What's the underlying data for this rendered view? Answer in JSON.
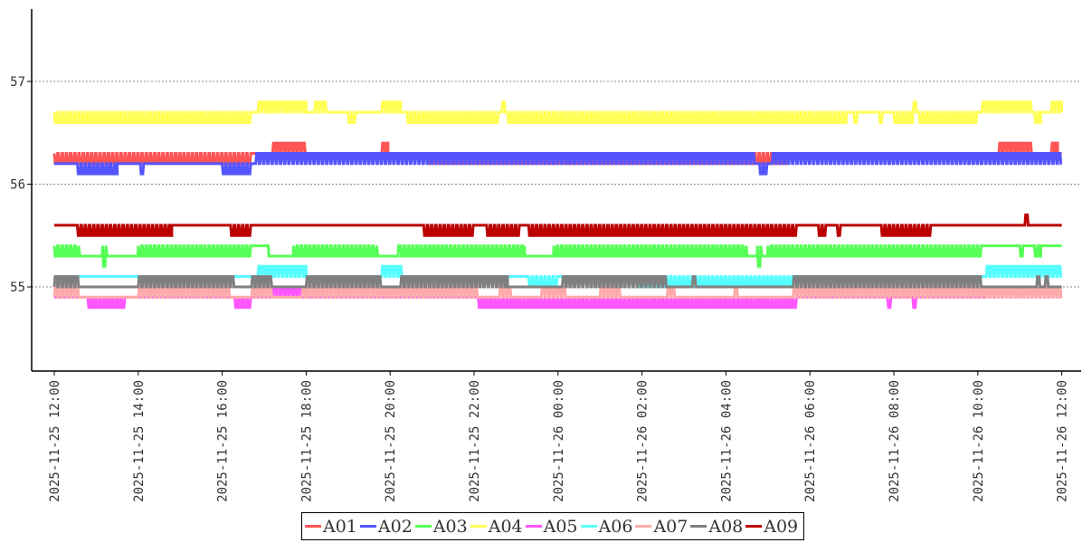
{
  "chart_data": {
    "type": "line",
    "title": "",
    "xlabel": "",
    "ylabel": "",
    "x_unit": "hours since 2025-11-25 12:00",
    "xlim": [
      0,
      24
    ],
    "ylim": [
      54.18,
      57.7
    ],
    "grid": "horizontal dotted",
    "legend_placement": "bottom-center",
    "x_ticks": [
      {
        "h": 0,
        "label": "2025-11-25 12:00"
      },
      {
        "h": 2,
        "label": "2025-11-25 14:00"
      },
      {
        "h": 4,
        "label": "2025-11-25 16:00"
      },
      {
        "h": 6,
        "label": "2025-11-25 18:00"
      },
      {
        "h": 8,
        "label": "2025-11-25 20:00"
      },
      {
        "h": 10,
        "label": "2025-11-25 22:00"
      },
      {
        "h": 12,
        "label": "2025-11-26 00:00"
      },
      {
        "h": 14,
        "label": "2025-11-26 02:00"
      },
      {
        "h": 16,
        "label": "2025-11-26 04:00"
      },
      {
        "h": 18,
        "label": "2025-11-26 06:00"
      },
      {
        "h": 20,
        "label": "2025-11-26 08:00"
      },
      {
        "h": 22,
        "label": "2025-11-26 10:00"
      },
      {
        "h": 24,
        "label": "2025-11-26 12:00"
      }
    ],
    "y_ticks": [
      {
        "v": 55,
        "label": "55"
      },
      {
        "v": 56,
        "label": "56"
      },
      {
        "v": 57,
        "label": "57"
      }
    ],
    "series": [
      {
        "name": "A01",
        "color": "#ff5555",
        "base": 56.3,
        "segments": [
          [
            0,
            4.7,
            56.2
          ],
          [
            5.2,
            6.0,
            56.4
          ],
          [
            7.8,
            7.95,
            56.4
          ],
          [
            8.9,
            17.5,
            56.2
          ],
          [
            22.5,
            23.3,
            56.4
          ],
          [
            23.75,
            23.9,
            56.4
          ]
        ]
      },
      {
        "name": "A02",
        "color": "#5555ff",
        "base": 56.2,
        "segments": [
          [
            0.55,
            1.5,
            56.1
          ],
          [
            2.05,
            2.15,
            56.1
          ],
          [
            4.0,
            4.7,
            56.1
          ],
          [
            4.8,
            16.7,
            56.3
          ],
          [
            16.8,
            17.0,
            56.1
          ],
          [
            17.1,
            24,
            56.3
          ]
        ]
      },
      {
        "name": "A03",
        "color": "#55ff55",
        "base": 55.4,
        "segments": [
          [
            0,
            0.6,
            55.3
          ],
          [
            0.6,
            1.15,
            55.3,
            1
          ],
          [
            1.15,
            1.25,
            55.2
          ],
          [
            1.25,
            2.0,
            55.3,
            1
          ],
          [
            2.0,
            4.7,
            55.3
          ],
          [
            5.1,
            5.7,
            55.3,
            1
          ],
          [
            5.7,
            7.7,
            55.3
          ],
          [
            7.7,
            8.2,
            55.3,
            1
          ],
          [
            8.25,
            11.2,
            55.3
          ],
          [
            11.2,
            11.9,
            55.3,
            1
          ],
          [
            11.9,
            16.5,
            55.3
          ],
          [
            16.5,
            16.75,
            55.3,
            1
          ],
          [
            16.75,
            16.85,
            55.2
          ],
          [
            16.85,
            17.0,
            55.3,
            1
          ],
          [
            17.0,
            22.1,
            55.3
          ],
          [
            23.0,
            23.1,
            55.3
          ],
          [
            23.35,
            23.5,
            55.3
          ]
        ]
      },
      {
        "name": "A04",
        "color": "#ffff55",
        "base": 56.7,
        "segments": [
          [
            0,
            4.7,
            56.6
          ],
          [
            4.85,
            6.0,
            56.8
          ],
          [
            6.2,
            6.5,
            56.8
          ],
          [
            7.0,
            7.2,
            56.6
          ],
          [
            7.8,
            8.25,
            56.8
          ],
          [
            8.4,
            10.6,
            56.6
          ],
          [
            10.66,
            10.74,
            56.8
          ],
          [
            10.8,
            18.9,
            56.6
          ],
          [
            19.05,
            19.15,
            56.6
          ],
          [
            19.65,
            19.75,
            56.6
          ],
          [
            20.0,
            20.45,
            56.6
          ],
          [
            20.46,
            20.54,
            56.8
          ],
          [
            20.6,
            22.0,
            56.6
          ],
          [
            22.1,
            23.3,
            56.8
          ],
          [
            23.35,
            23.5,
            56.6
          ],
          [
            23.75,
            24,
            56.8
          ]
        ]
      },
      {
        "name": "A05",
        "color": "#ff55ff",
        "base": 54.9,
        "segments": [
          [
            0.8,
            1.7,
            54.8
          ],
          [
            4.3,
            4.7,
            54.8
          ],
          [
            5.2,
            5.9,
            55.0
          ],
          [
            10.1,
            17.7,
            54.8
          ],
          [
            19.85,
            19.95,
            54.8
          ],
          [
            20.45,
            20.55,
            54.8
          ],
          [
            22.2,
            24,
            55.0
          ]
        ]
      },
      {
        "name": "A06",
        "color": "#55ffff",
        "base": 55.1,
        "segments": [
          [
            4.85,
            6.0,
            55.2
          ],
          [
            7.8,
            8.3,
            55.2
          ],
          [
            11.3,
            12.0,
            55.0
          ],
          [
            13.9,
            17.6,
            55.0
          ],
          [
            22.2,
            24,
            55.2
          ]
        ]
      },
      {
        "name": "A07",
        "color": "#ffaaaa",
        "base": 54.9,
        "segments": [
          [
            0,
            0.6,
            55.0
          ],
          [
            2.0,
            4.2,
            55.0
          ],
          [
            4.7,
            5.2,
            55.0
          ],
          [
            5.9,
            10.1,
            55.0
          ],
          [
            10.6,
            10.9,
            55.0
          ],
          [
            11.6,
            12.2,
            55.0
          ],
          [
            13.0,
            13.5,
            55.0
          ],
          [
            14.6,
            14.8,
            55.0
          ],
          [
            16.2,
            16.3,
            55.0
          ],
          [
            17.6,
            24,
            55.0
          ]
        ]
      },
      {
        "name": "A08",
        "color": "#808080",
        "base": 55.0,
        "segments": [
          [
            0,
            0.6,
            55.1
          ],
          [
            2.0,
            4.3,
            55.1
          ],
          [
            4.7,
            5.2,
            55.1
          ],
          [
            6.0,
            7.8,
            55.1
          ],
          [
            8.25,
            10.8,
            55.1
          ],
          [
            12.1,
            14.6,
            55.1
          ],
          [
            15.2,
            15.3,
            55.1
          ],
          [
            17.6,
            22.1,
            55.1
          ],
          [
            23.4,
            23.5,
            55.1
          ],
          [
            23.6,
            23.7,
            55.1
          ]
        ]
      },
      {
        "name": "A09",
        "color": "#bb0000",
        "base": 55.6,
        "segments": [
          [
            0.55,
            2.8,
            55.5
          ],
          [
            4.2,
            4.7,
            55.5
          ],
          [
            8.8,
            10.0,
            55.5
          ],
          [
            10.3,
            11.1,
            55.5
          ],
          [
            11.3,
            17.7,
            55.5
          ],
          [
            18.2,
            18.4,
            55.5
          ],
          [
            18.65,
            18.75,
            55.5
          ],
          [
            19.7,
            20.9,
            55.5
          ],
          [
            23.12,
            23.22,
            55.7
          ]
        ]
      }
    ]
  }
}
